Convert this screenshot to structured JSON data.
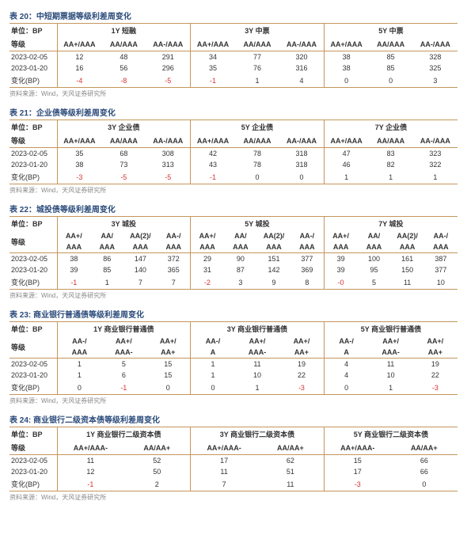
{
  "common": {
    "source": "资料来源：Wind，天风证券研究所",
    "unit_label": "单位：BP",
    "grade_label": "等级",
    "row1": "2023-02-05",
    "row2": "2023-01-20",
    "row3": "变化(BP)"
  },
  "t20": {
    "title": "表 20：中短期票据等级利差周变化",
    "groups": [
      "1Y 短融",
      "3Y 中票",
      "5Y 中票"
    ],
    "cols": [
      "AA+/AAA",
      "AA/AAA",
      "AA-/AAA",
      "AA+/AAA",
      "AA/AAA",
      "AA-/AAA",
      "AA+/AAA",
      "AA/AAA",
      "AA-/AAA"
    ],
    "r1": [
      "12",
      "48",
      "291",
      "34",
      "77",
      "320",
      "38",
      "85",
      "328"
    ],
    "r2": [
      "16",
      "56",
      "296",
      "35",
      "76",
      "316",
      "38",
      "85",
      "325"
    ],
    "r3": [
      "-4",
      "-8",
      "-5",
      "-1",
      "1",
      "4",
      "0",
      "0",
      "3"
    ]
  },
  "t21": {
    "title": "表 21：企业债等级利差周变化",
    "groups": [
      "3Y 企业债",
      "5Y 企业债",
      "7Y 企业债"
    ],
    "cols": [
      "AA+/AAA",
      "AA/AAA",
      "AA-/AAA",
      "AA+/AAA",
      "AA/AAA",
      "AA-/AAA",
      "AA+/AAA",
      "AA/AAA",
      "AA-/AAA"
    ],
    "r1": [
      "35",
      "68",
      "308",
      "42",
      "78",
      "318",
      "47",
      "83",
      "323"
    ],
    "r2": [
      "38",
      "73",
      "313",
      "43",
      "78",
      "318",
      "46",
      "82",
      "322"
    ],
    "r3": [
      "-3",
      "-5",
      "-5",
      "-1",
      "0",
      "0",
      "1",
      "1",
      "1"
    ]
  },
  "t22": {
    "title": "表 22：城投债等级利差周变化",
    "groups": [
      "3Y 城投",
      "5Y 城投",
      "7Y 城投"
    ],
    "cols_top": [
      "AA+/",
      "AA/",
      "AA(2)/",
      "AA-/",
      "AA+/",
      "AA/",
      "AA(2)/",
      "AA-/",
      "AA+/",
      "AA/",
      "AA(2)/",
      "AA-/"
    ],
    "cols_bot": [
      "AAA",
      "AAA",
      "AAA",
      "AAA",
      "AAA",
      "AAA",
      "AAA",
      "AAA",
      "AAA",
      "AAA",
      "AAA",
      "AAA"
    ],
    "r1": [
      "38",
      "86",
      "147",
      "372",
      "29",
      "90",
      "151",
      "377",
      "39",
      "100",
      "161",
      "387"
    ],
    "r2": [
      "39",
      "85",
      "140",
      "365",
      "31",
      "87",
      "142",
      "369",
      "39",
      "95",
      "150",
      "377"
    ],
    "r3": [
      "-1",
      "1",
      "7",
      "7",
      "-2",
      "3",
      "9",
      "8",
      "-0",
      "5",
      "11",
      "10"
    ]
  },
  "t23": {
    "title": "表 23: 商业银行普通债等级利差周变化",
    "groups": [
      "1Y 商业银行普通债",
      "3Y 商业银行普通债",
      "5Y 商业银行普通债"
    ],
    "cols_top": [
      "AA-/",
      "AA+/",
      "AA+/",
      "AA-/",
      "AA+/",
      "AA+/",
      "AA-/",
      "AA+/",
      "AA+/"
    ],
    "cols_bot": [
      "AAA",
      "AAA-",
      "AA+",
      "A",
      "AAA-",
      "AA+",
      "A",
      "AAA-",
      "AA+"
    ],
    "r1": [
      "1",
      "5",
      "15",
      "1",
      "11",
      "19",
      "4",
      "11",
      "19"
    ],
    "r2": [
      "1",
      "6",
      "15",
      "1",
      "10",
      "22",
      "4",
      "10",
      "22"
    ],
    "r3": [
      "0",
      "-1",
      "0",
      "0",
      "1",
      "-3",
      "0",
      "1",
      "-3"
    ]
  },
  "t24": {
    "title": "表 24: 商业银行二级资本债等级利差周变化",
    "groups": [
      "1Y 商业银行二级资本债",
      "3Y 商业银行二级资本债",
      "5Y 商业银行二级资本债"
    ],
    "cols": [
      "AA+/AAA-",
      "AA/AA+",
      "AA+/AAA-",
      "AA/AA+",
      "AA+/AAA-",
      "AA/AA+"
    ],
    "r1": [
      "11",
      "52",
      "17",
      "62",
      "15",
      "66"
    ],
    "r2": [
      "12",
      "50",
      "11",
      "51",
      "17",
      "66"
    ],
    "r3": [
      "-1",
      "2",
      "7",
      "11",
      "-3",
      "0"
    ]
  }
}
